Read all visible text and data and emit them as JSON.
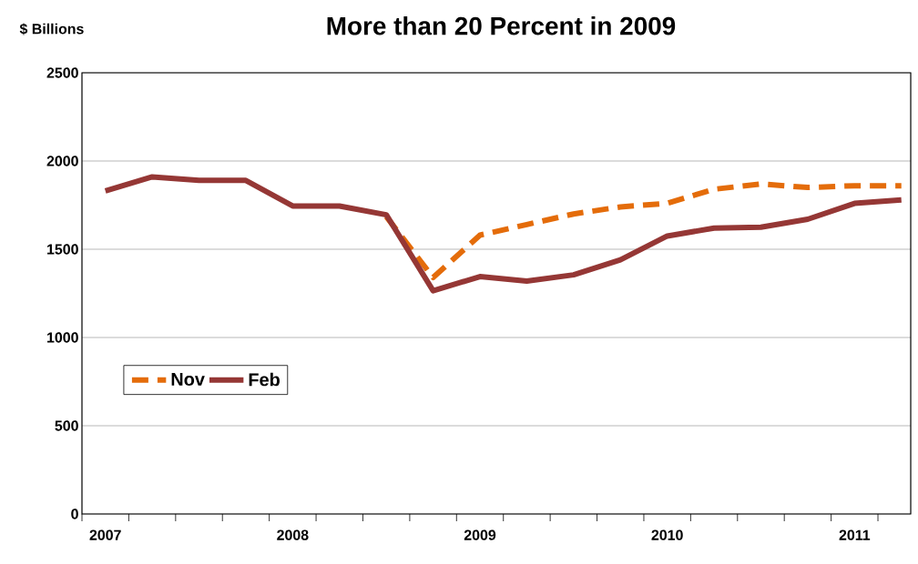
{
  "chart_data": {
    "type": "line",
    "title": "More than 20 Percent in 2009",
    "ylabel": "$ Billions",
    "categories": [
      "2007",
      null,
      null,
      null,
      "2008",
      null,
      null,
      null,
      "2009",
      null,
      null,
      null,
      "2010",
      null,
      null,
      null,
      "2011",
      null
    ],
    "series": [
      {
        "name": "Nov",
        "color": "#e46c0a",
        "line_style": "dashed",
        "values": [
          null,
          null,
          null,
          null,
          null,
          null,
          1685,
          1340,
          1580,
          1640,
          1700,
          1740,
          1760,
          1840,
          1870,
          1850,
          1860,
          1860
        ]
      },
      {
        "name": "Feb",
        "color": "#953735",
        "line_style": "solid",
        "values": [
          1830,
          1910,
          1890,
          1890,
          1745,
          1745,
          1695,
          1265,
          1345,
          1320,
          1355,
          1440,
          1575,
          1620,
          1625,
          1670,
          1760,
          1780
        ]
      }
    ],
    "ylim": [
      0,
      2500
    ],
    "yticks": [
      0,
      500,
      1000,
      1500,
      2000,
      2500
    ],
    "grid": "y",
    "legend": "left",
    "marker": "none"
  }
}
